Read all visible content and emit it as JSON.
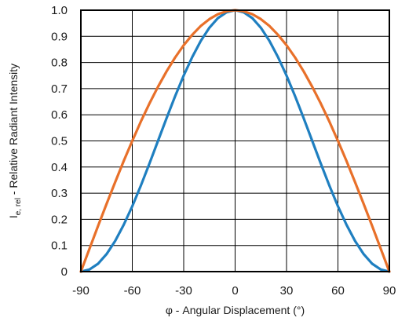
{
  "chart_data": {
    "type": "line",
    "title": "",
    "xlabel": "φ - Angular Displacement (°)",
    "ylabel": "Iₑ, rel - Relative Radiant Intensity",
    "ylabel_main": "I",
    "ylabel_sub": "e, rel",
    "ylabel_rest": " - Relative Radiant Intensity",
    "xlim": [
      -90,
      90
    ],
    "ylim": [
      0,
      1.0
    ],
    "xticks": [
      -90,
      -60,
      -30,
      0,
      30,
      60,
      90
    ],
    "xtick_labels": [
      "-90",
      "-60",
      "-30",
      "0",
      "30",
      "60",
      "90"
    ],
    "yticks": [
      0,
      0.1,
      0.2,
      0.3,
      0.4,
      0.5,
      0.6,
      0.7,
      0.8,
      0.9,
      1.0
    ],
    "ytick_labels": [
      "0",
      "0.1",
      "0.2",
      "0.3",
      "0.4",
      "0.5",
      "0.6",
      "0.7",
      "0.8",
      "0.9",
      "1.0"
    ],
    "grid": true,
    "legend": "none",
    "series": [
      {
        "color": "#1f7fc0",
        "x": [
          -90,
          -85,
          -80,
          -75,
          -70,
          -65,
          -60,
          -55,
          -50,
          -45,
          -40,
          -35,
          -30,
          -25,
          -20,
          -15,
          -10,
          -5,
          0,
          5,
          10,
          15,
          20,
          25,
          30,
          35,
          40,
          45,
          50,
          55,
          60,
          65,
          70,
          75,
          80,
          85,
          90
        ],
        "y": [
          0.0,
          0.008,
          0.03,
          0.067,
          0.117,
          0.179,
          0.25,
          0.329,
          0.413,
          0.5,
          0.587,
          0.671,
          0.75,
          0.821,
          0.883,
          0.933,
          0.97,
          0.992,
          1.0,
          0.992,
          0.97,
          0.933,
          0.883,
          0.821,
          0.75,
          0.671,
          0.587,
          0.5,
          0.413,
          0.329,
          0.25,
          0.179,
          0.117,
          0.067,
          0.03,
          0.008,
          0.0
        ]
      },
      {
        "color": "#e8702a",
        "x": [
          -90,
          -85,
          -80,
          -75,
          -70,
          -65,
          -60,
          -55,
          -50,
          -45,
          -40,
          -35,
          -30,
          -25,
          -20,
          -15,
          -10,
          -5,
          0,
          5,
          10,
          15,
          20,
          25,
          30,
          35,
          40,
          45,
          50,
          55,
          60,
          65,
          70,
          75,
          80,
          85,
          90
        ],
        "y": [
          0.0,
          0.087,
          0.174,
          0.259,
          0.342,
          0.423,
          0.5,
          0.574,
          0.643,
          0.707,
          0.766,
          0.819,
          0.866,
          0.906,
          0.94,
          0.966,
          0.985,
          0.996,
          1.0,
          0.996,
          0.985,
          0.966,
          0.94,
          0.906,
          0.866,
          0.819,
          0.766,
          0.707,
          0.643,
          0.574,
          0.5,
          0.423,
          0.342,
          0.259,
          0.174,
          0.087,
          0.0
        ]
      }
    ]
  }
}
